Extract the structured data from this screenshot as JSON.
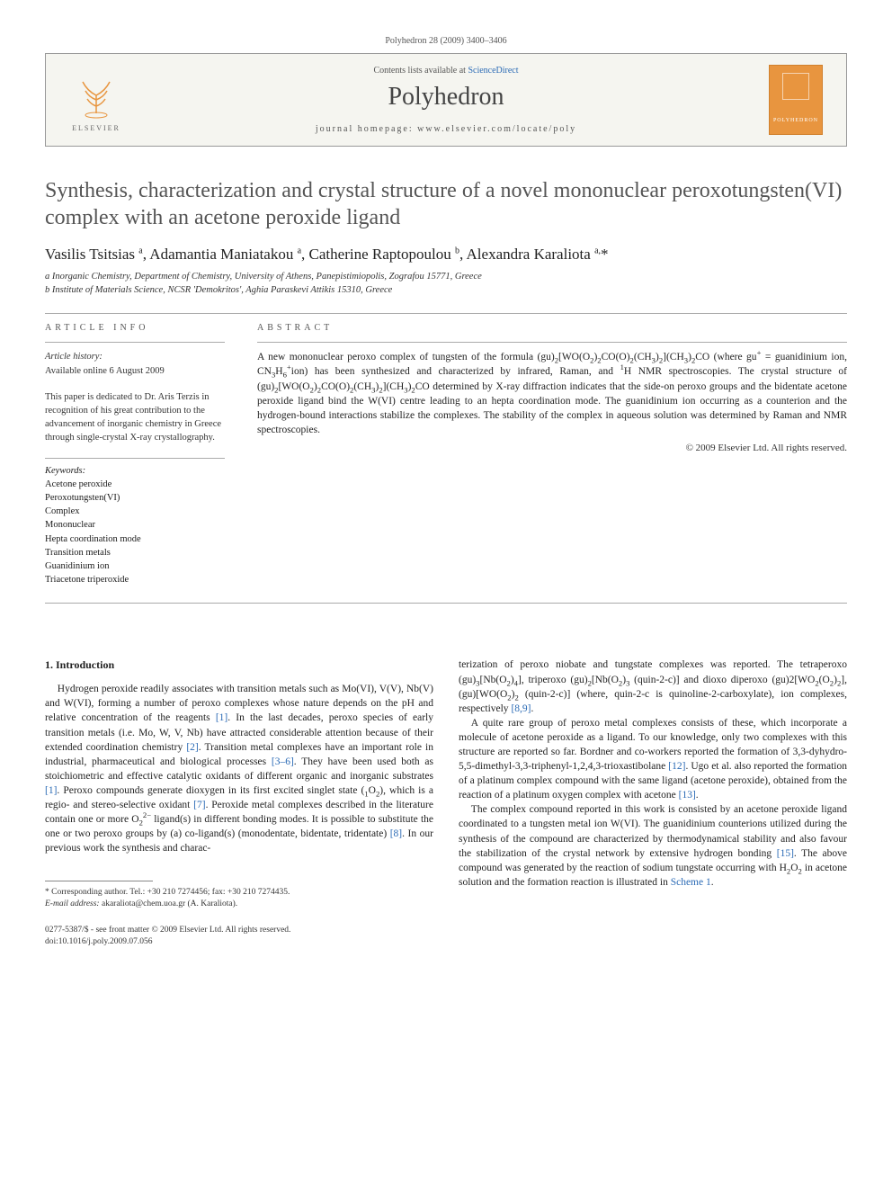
{
  "header": {
    "citation": "Polyhedron 28 (2009) 3400–3406"
  },
  "banner": {
    "publisher": "ELSEVIER",
    "contents_prefix": "Contents lists available at ",
    "contents_link": "ScienceDirect",
    "journal": "Polyhedron",
    "homepage_prefix": "journal homepage: ",
    "homepage_url": "www.elsevier.com/locate/poly",
    "cover_text": "POLYHEDRON"
  },
  "title": "Synthesis, characterization and crystal structure of a novel mononuclear peroxotungsten(VI) complex with an acetone peroxide ligand",
  "authors_html": "Vasilis Tsitsias <sup>a</sup>, Adamantia Maniatakou <sup>a</sup>, Catherine Raptopoulou <sup>b</sup>, Alexandra Karaliota <sup>a,</sup><span class='star'>*</span>",
  "affiliations": [
    "a Inorganic Chemistry, Department of Chemistry, University of Athens, Panepistimiopolis, Zografou 15771, Greece",
    "b Institute of Materials Science, NCSR 'Demokritos', Aghia Paraskevi Attikis 15310, Greece"
  ],
  "article_info": {
    "label": "ARTICLE INFO",
    "history_label": "Article history:",
    "history": "Available online 6 August 2009",
    "dedication": "This paper is dedicated to Dr. Aris Terzis in recognition of his great contribution to the advancement of inorganic chemistry in Greece through single-crystal X-ray crystallography.",
    "keywords_label": "Keywords:",
    "keywords": [
      "Acetone peroxide",
      "Peroxotungsten(VI)",
      "Complex",
      "Mononuclear",
      "Hepta coordination mode",
      "Transition metals",
      "Guanidinium ion",
      "Triacetone triperoxide"
    ]
  },
  "abstract": {
    "label": "ABSTRACT",
    "text_html": "A new mononuclear peroxo complex of tungsten of the formula (gu)<sub>2</sub>[WO(O<sub>2</sub>)<sub>2</sub>CO(O)<sub>2</sub>(CH<sub>3</sub>)<sub>2</sub>](CH<sub>3</sub>)<sub>2</sub>CO (where gu<sup>+</sup> = guanidinium ion, CN<sub>3</sub>H<sub>6</sub><sup>+</sup>ion) has been synthesized and characterized by infrared, Raman, and <sup>1</sup>H NMR spectroscopies. The crystal structure of (gu)<sub>2</sub>[WO(O<sub>2</sub>)<sub>2</sub>CO(O)<sub>2</sub>(CH<sub>3</sub>)<sub>2</sub>](CH<sub>3</sub>)<sub>2</sub>CO determined by X-ray diffraction indicates that the side-on peroxo groups and the bidentate acetone peroxide ligand bind the W(VI) centre leading to an hepta coordination mode. The guanidinium ion occurring as a counterion and the hydrogen-bound interactions stabilize the complexes. The stability of the complex in aqueous solution was determined by Raman and NMR spectroscopies.",
    "copyright": "© 2009 Elsevier Ltd. All rights reserved."
  },
  "body": {
    "heading": "1. Introduction",
    "col1_html": "Hydrogen peroxide readily associates with transition metals such as Mo(VI), V(V), Nb(V) and W(VI), forming a number of peroxo complexes whose nature depends on the pH and relative concentration of the reagents <span class='ref-link'>[1]</span>. In the last decades, peroxo species of early transition metals (i.e. Mo, W, V, Nb) have attracted considerable attention because of their extended coordination chemistry <span class='ref-link'>[2]</span>. Transition metal complexes have an important role in industrial, pharmaceutical and biological processes <span class='ref-link'>[3–6]</span>. They have been used both as stoichiometric and effective catalytic oxidants of different organic and inorganic substrates <span class='ref-link'>[1]</span>. Peroxo compounds generate dioxygen in its first excited singlet state (<sub>1</sub>O<sub>2</sub>), which is a regio- and stereo-selective oxidant <span class='ref-link'>[7]</span>. Peroxide metal complexes described in the literature contain one or more O<sub>2</sub><sup>2−</sup> ligand(s) in different bonding modes. It is possible to substitute the one or two peroxo groups by (a) co-ligand(s) (monodentate, bidentate, tridentate) <span class='ref-link'>[8]</span>. In our previous work the synthesis and charac-",
    "col2_p1_html": "terization of peroxo niobate and tungstate complexes was reported. The tetraperoxo (gu)<sub>3</sub>[Nb(O<sub>2</sub>)<sub>4</sub>], triperoxo (gu)<sub>2</sub>[Nb(O<sub>2</sub>)<sub>3</sub> (quin-2-c)] and dioxo diperoxo (gu)2[WO<sub>2</sub>(O<sub>2</sub>)<sub>2</sub>], (gu)[WO(O<sub>2</sub>)<sub>2</sub> (quin-2-c)] (where, quin-2-c is quinoline-2-carboxylate), ion complexes, respectively <span class='ref-link'>[8,9]</span>.",
    "col2_p2_html": "A quite rare group of peroxo metal complexes consists of these, which incorporate a molecule of acetone peroxide as a ligand. To our knowledge, only two complexes with this structure are reported so far. Bordner and co-workers reported the formation of 3,3-dyhydro-5,5-dimethyl-3,3-triphenyl-1,2,4,3-trioxastibolane <span class='ref-link'>[12]</span>. Ugo et al. also reported the formation of a platinum complex compound with the same ligand (acetone peroxide), obtained from the reaction of a platinum oxygen complex with acetone <span class='ref-link'>[13]</span>.",
    "col2_p3_html": "The complex compound reported in this work is consisted by an acetone peroxide ligand coordinated to a tungsten metal ion W(VI). The guanidinium counterions utilized during the synthesis of the compound are characterized by thermodynamical stability and also favour the stabilization of the crystal network by extensive hydrogen bonding <span class='ref-link'>[15]</span>. The above compound was generated by the reaction of sodium tungstate occurring with H<sub>2</sub>O<sub>2</sub> in acetone solution and the formation reaction is illustrated in <span class='ref-link'>Scheme 1</span>."
  },
  "footnote": {
    "corr": "* Corresponding author. Tel.: +30 210 7274456; fax: +30 210 7274435.",
    "email_label": "E-mail address:",
    "email": "akaraliota@chem.uoa.gr",
    "email_owner": "(A. Karaliota)."
  },
  "footer": {
    "line1": "0277-5387/$ - see front matter © 2009 Elsevier Ltd. All rights reserved.",
    "line2": "doi:10.1016/j.poly.2009.07.056"
  },
  "colors": {
    "link": "#2a6ab5",
    "cover_bg": "#e8953f",
    "text": "#1a1a1a",
    "muted": "#555555"
  }
}
